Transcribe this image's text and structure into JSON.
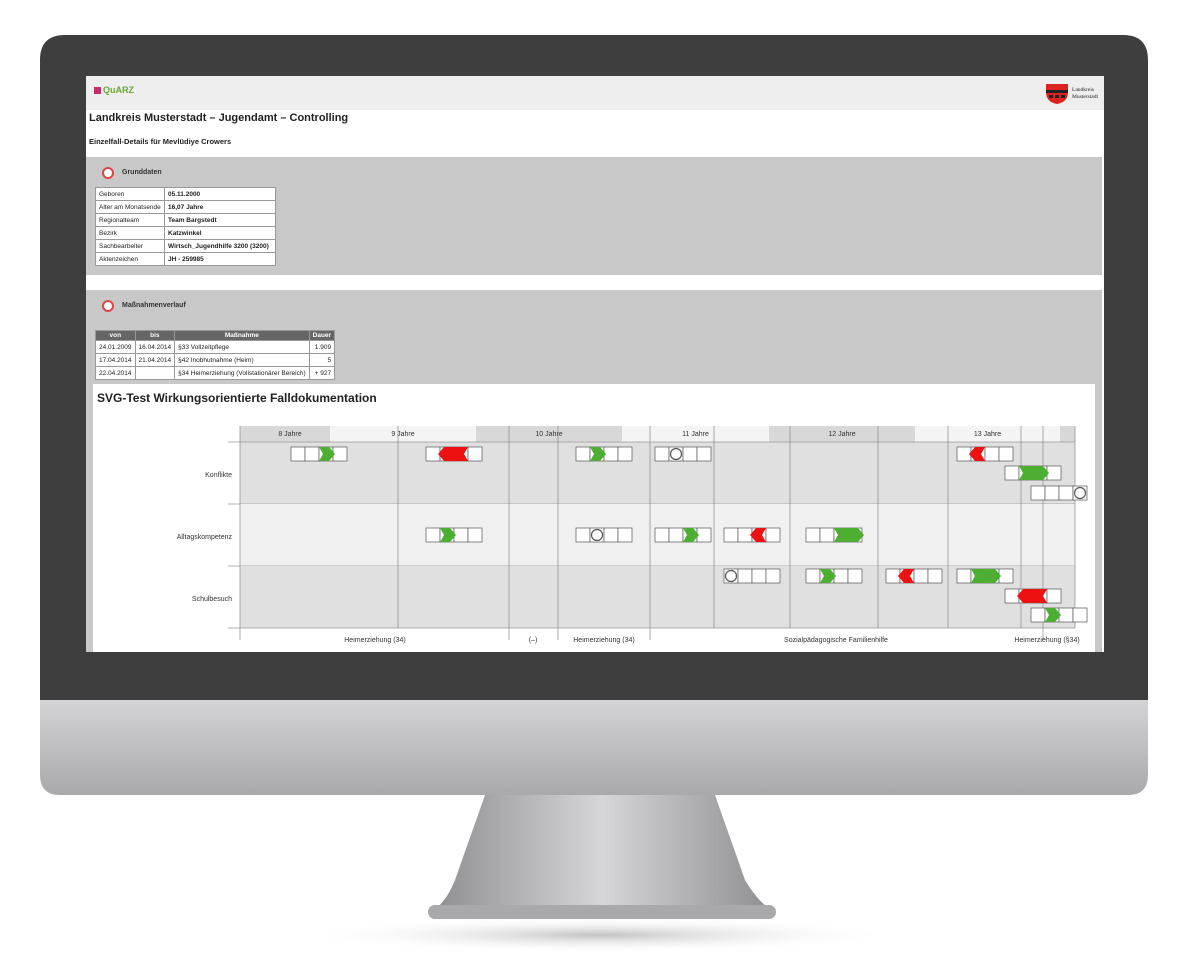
{
  "header": {
    "logo": "QuARZ",
    "district_logo": [
      "Landkreis",
      "Musterstadt"
    ]
  },
  "title": "Landkreis Musterstadt – Jugendamt – Controlling",
  "subtitle": "Einzelfall-Details für Mevlüdiye Crowers",
  "basic_data": {
    "heading": "Grunddaten",
    "rows": [
      [
        "Geboren",
        "05.11.2000"
      ],
      [
        "Alter am Monatsende",
        "16,07 Jahre"
      ],
      [
        "Regionalteam",
        "Team Bargstedt"
      ],
      [
        "Bezirk",
        "Katzwinkel"
      ],
      [
        "Sachbearbeiter",
        "Wirtsch_Jugendhilfe 3200 (3200)"
      ],
      [
        "Aktenzeichen",
        "JH - 259985"
      ]
    ]
  },
  "measures": {
    "heading": "Maßnahmenverlauf",
    "columns": [
      "von",
      "bis",
      "Maßnahme",
      "Dauer"
    ],
    "rows": [
      [
        "24.01.2009",
        "16.04.2014",
        "§33 Vollzeitpflege",
        "1.909"
      ],
      [
        "17.04.2014",
        "21.04.2014",
        "§42 Inobhutnahme (Heim)",
        "5"
      ],
      [
        "22.04.2014",
        null,
        "§34 Heimerziehung (Vollstationärer Bereich)",
        "+ 927"
      ]
    ]
  },
  "timeline": {
    "title": "SVG-Test Wirkungsorientierte Falldokumentation",
    "years": [
      "8 Jahre",
      "9 Jahre",
      "10 Jahre",
      "11 Jahre",
      "12 Jahre",
      "13 Jahre"
    ],
    "rows": [
      "Konflikte",
      "Alltagskompetenz",
      "Schulbesuch"
    ],
    "measures": [
      "Heimerziehung (34)",
      "(–)",
      "Heimerziehung (34)",
      "Sozialpädagogische Familienhilfe",
      "Heimerziehung (§34)"
    ]
  }
}
